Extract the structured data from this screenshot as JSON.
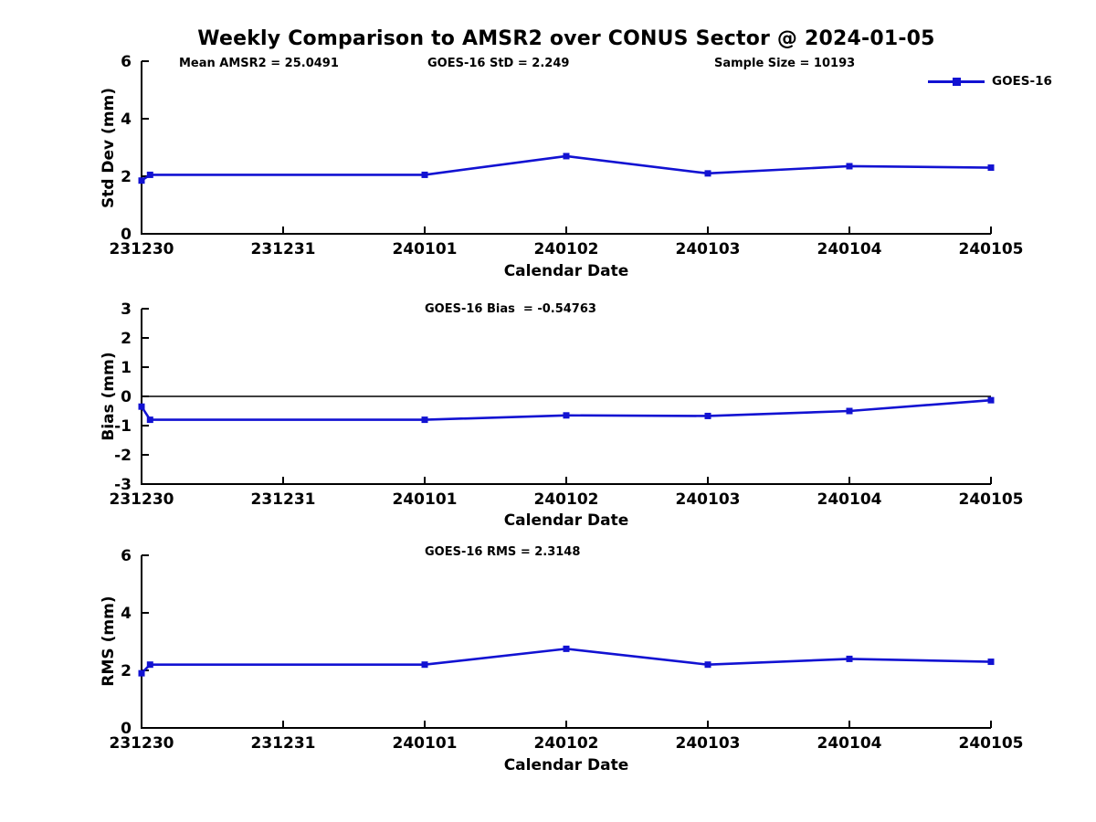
{
  "page": {
    "title": "Weekly Comparison to AMSR2 over CONUS Sector @ 2024-01-05"
  },
  "colors": {
    "series": "#1212d2",
    "axis": "#000000",
    "background": "#ffffff"
  },
  "legend": {
    "label": "GOES-16"
  },
  "chart_data": [
    {
      "type": "line",
      "name": "std-dev-panel",
      "annotations": [
        "Mean AMSR2 = 25.0491",
        "GOES-16 StD = 2.249",
        "Sample Size = 10193"
      ],
      "ylabel": "Std Dev (mm)",
      "xlabel": "Calendar Date",
      "x_tick_labels": [
        "231230",
        "231231",
        "240101",
        "240102",
        "240103",
        "240104",
        "240105"
      ],
      "ylim": [
        0,
        6
      ],
      "y_ticks": [
        0,
        2,
        4,
        6
      ],
      "grid": false,
      "zero_line": false,
      "legend_position": "top-right",
      "series": [
        {
          "name": "GOES-16",
          "color": "#1212d2",
          "marker": "square",
          "x_unit": "days since 231230",
          "points": [
            [
              0,
              1.85
            ],
            [
              0.06,
              2.05
            ],
            [
              2,
              2.05
            ],
            [
              3,
              2.7
            ],
            [
              4,
              2.1
            ],
            [
              5,
              2.35
            ],
            [
              6,
              2.3
            ]
          ]
        }
      ]
    },
    {
      "type": "line",
      "name": "bias-panel",
      "annotations": [
        "GOES-16 Bias  = -0.54763"
      ],
      "ylabel": "Bias (mm)",
      "xlabel": "Calendar Date",
      "x_tick_labels": [
        "231230",
        "231231",
        "240101",
        "240102",
        "240103",
        "240104",
        "240105"
      ],
      "ylim": [
        -3,
        3
      ],
      "y_ticks": [
        -3,
        -2,
        -1,
        0,
        1,
        2,
        3
      ],
      "grid": false,
      "zero_line": true,
      "series": [
        {
          "name": "GOES-16",
          "color": "#1212d2",
          "marker": "square",
          "x_unit": "days since 231230",
          "points": [
            [
              0,
              -0.35
            ],
            [
              0.06,
              -0.8
            ],
            [
              2,
              -0.8
            ],
            [
              3,
              -0.65
            ],
            [
              4,
              -0.67
            ],
            [
              5,
              -0.5
            ],
            [
              6,
              -0.13
            ]
          ]
        }
      ]
    },
    {
      "type": "line",
      "name": "rms-panel",
      "annotations": [
        "GOES-16 RMS = 2.3148"
      ],
      "ylabel": "RMS (mm)",
      "xlabel": "Calendar Date",
      "x_tick_labels": [
        "231230",
        "231231",
        "240101",
        "240102",
        "240103",
        "240104",
        "240105"
      ],
      "ylim": [
        0,
        6
      ],
      "y_ticks": [
        0,
        2,
        4,
        6
      ],
      "grid": false,
      "zero_line": false,
      "series": [
        {
          "name": "GOES-16",
          "color": "#1212d2",
          "marker": "square",
          "x_unit": "days since 231230",
          "points": [
            [
              0,
              1.9
            ],
            [
              0.06,
              2.2
            ],
            [
              2,
              2.2
            ],
            [
              3,
              2.75
            ],
            [
              4,
              2.2
            ],
            [
              5,
              2.4
            ],
            [
              6,
              2.3
            ]
          ]
        }
      ]
    }
  ]
}
